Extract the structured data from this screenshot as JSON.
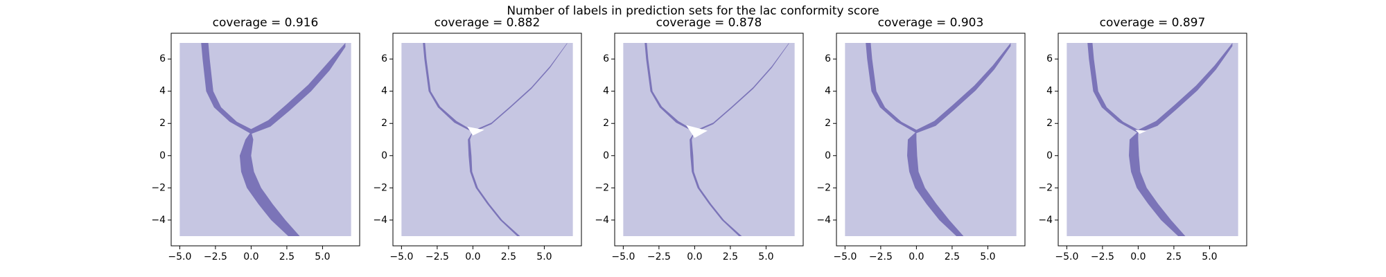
{
  "title": "Number of labels in prediction sets for the lac conformity score",
  "chart_data": [
    {
      "type": "region",
      "title": "coverage = 0.916",
      "xlim": [
        -5.6,
        7.6
      ],
      "ylim": [
        -5.6,
        7.6
      ],
      "xticks": [
        {
          "value": -5,
          "label": "−5.0"
        },
        {
          "value": -2.5,
          "label": "−2.5"
        },
        {
          "value": 0,
          "label": "0.0"
        },
        {
          "value": 2.5,
          "label": "2.5"
        },
        {
          "value": 5,
          "label": "5.0"
        }
      ],
      "yticks": [
        {
          "value": -4,
          "label": "−4"
        },
        {
          "value": -2,
          "label": "−2"
        },
        0,
        2,
        4,
        6
      ],
      "regions": [
        {
          "color": "#c6c6e2",
          "x": [
            -5,
            7,
            7,
            -5
          ],
          "y": [
            -5,
            -5,
            7,
            7
          ]
        },
        {
          "color": "#7b74b8",
          "x": [
            -3.5,
            -3.4,
            -3.15,
            -2.6,
            -1.5,
            0,
            1.35,
            2.7,
            4.2,
            5.5,
            6.6,
            6.6,
            5.3,
            4.0,
            2.5,
            1.2,
            0,
            -1.0,
            -2.1,
            -2.65,
            -2.9,
            -3.0
          ],
          "y": [
            7,
            6,
            4,
            3,
            2.1,
            1.35,
            1.8,
            2.8,
            4.0,
            5.3,
            6.75,
            7,
            5.7,
            4.4,
            3.2,
            2.2,
            1.65,
            2.1,
            3,
            4,
            6,
            7
          ]
        },
        {
          "color": "#7b74b8",
          "x": [
            0,
            -0.4,
            -0.8,
            -0.7,
            -0.3,
            0.5,
            1.4,
            2.6,
            3.4,
            2.4,
            1.5,
            0.7,
            0.2,
            0.0,
            0.15
          ],
          "y": [
            1.5,
            1,
            0,
            -1,
            -2,
            -3,
            -4,
            -5,
            -5,
            -4,
            -3,
            -2,
            -1,
            0,
            1
          ]
        }
      ]
    },
    {
      "type": "region",
      "title": "coverage = 0.882",
      "xlim": [
        -5.6,
        7.6
      ],
      "ylim": [
        -5.6,
        7.6
      ],
      "xticks": [
        {
          "value": -5,
          "label": "−5.0"
        },
        {
          "value": -2.5,
          "label": "−2.5"
        },
        {
          "value": 0,
          "label": "0.0"
        },
        {
          "value": 2.5,
          "label": "2.5"
        },
        {
          "value": 5,
          "label": "5.0"
        }
      ],
      "yticks": [
        {
          "value": -4,
          "label": "−4"
        },
        {
          "value": -2,
          "label": "−2"
        },
        0,
        2,
        4,
        6
      ],
      "regions": [
        {
          "color": "#c6c6e2",
          "x": [
            -5,
            7,
            7,
            -5
          ],
          "y": [
            -5,
            -5,
            7,
            7
          ]
        },
        {
          "color": "#7b74b8",
          "x": [
            -3.5,
            -3.4,
            -3.1,
            -2.45,
            -1.3,
            0,
            1.3,
            2.6,
            4.1,
            5.4,
            6.6,
            6.6,
            5.4,
            4.1,
            2.6,
            1.3,
            0,
            -1.15,
            -2.3,
            -2.95,
            -3.25,
            -3.35
          ],
          "y": [
            7,
            6,
            4,
            3,
            2.05,
            1.45,
            1.95,
            2.95,
            4.15,
            5.45,
            6.95,
            7,
            5.55,
            4.25,
            3.05,
            2.05,
            1.55,
            2.15,
            3.05,
            4,
            6,
            7
          ]
        },
        {
          "color": "#7b74b8",
          "x": [
            0,
            -0.35,
            -0.3,
            -0.2,
            0.2,
            1.0,
            1.9,
            3.1,
            3.3,
            2.05,
            1.15,
            0.35,
            -0.05,
            -0.1,
            -0.2
          ],
          "y": [
            1.5,
            1,
            0,
            -1,
            -2,
            -3,
            -4,
            -5,
            -5,
            -4,
            -3,
            -2,
            -1,
            0,
            1
          ]
        },
        {
          "color": "#ffffff",
          "x": [
            -0.4,
            0.8,
            0.0
          ],
          "y": [
            1.8,
            1.6,
            1.25
          ]
        }
      ]
    },
    {
      "type": "region",
      "title": "coverage = 0.878",
      "xlim": [
        -5.6,
        7.6
      ],
      "ylim": [
        -5.6,
        7.6
      ],
      "xticks": [
        {
          "value": -5,
          "label": "−5.0"
        },
        {
          "value": -2.5,
          "label": "−2.5"
        },
        {
          "value": 0,
          "label": "0.0"
        },
        {
          "value": 2.5,
          "label": "2.5"
        },
        {
          "value": 5,
          "label": "5.0"
        }
      ],
      "yticks": [
        {
          "value": -4,
          "label": "−4"
        },
        {
          "value": -2,
          "label": "−2"
        },
        0,
        2,
        4,
        6
      ],
      "regions": [
        {
          "color": "#c6c6e2",
          "x": [
            -5,
            7,
            7,
            -5
          ],
          "y": [
            -5,
            -5,
            7,
            7
          ]
        },
        {
          "color": "#7b74b8",
          "x": [
            -3.5,
            -3.4,
            -3.1,
            -2.45,
            -1.3,
            0,
            1.3,
            2.6,
            4.1,
            5.4,
            6.6,
            6.6,
            5.4,
            4.1,
            2.6,
            1.3,
            0,
            -1.15,
            -2.3,
            -2.95,
            -3.25,
            -3.35
          ],
          "y": [
            7,
            6,
            4,
            3,
            2.05,
            1.45,
            1.95,
            2.95,
            4.15,
            5.45,
            6.95,
            7,
            5.55,
            4.25,
            3.05,
            2.05,
            1.55,
            2.15,
            3.05,
            4,
            6,
            7
          ]
        },
        {
          "color": "#7b74b8",
          "x": [
            0,
            -0.35,
            -0.3,
            -0.2,
            0.2,
            1.0,
            1.9,
            3.1,
            3.3,
            2.05,
            1.15,
            0.35,
            -0.05,
            -0.1,
            -0.2
          ],
          "y": [
            1.5,
            1,
            0,
            -1,
            -2,
            -3,
            -4,
            -5,
            -5,
            -4,
            -3,
            -2,
            -1,
            0,
            1
          ]
        },
        {
          "color": "#ffffff",
          "x": [
            -0.6,
            0.9,
            0.0
          ],
          "y": [
            1.9,
            1.55,
            1.1
          ]
        }
      ]
    },
    {
      "type": "region",
      "title": "coverage = 0.903",
      "xlim": [
        -5.6,
        7.6
      ],
      "ylim": [
        -5.6,
        7.6
      ],
      "xticks": [
        {
          "value": -5,
          "label": "−5.0"
        },
        {
          "value": -2.5,
          "label": "−2.5"
        },
        {
          "value": 0,
          "label": "0.0"
        },
        {
          "value": 2.5,
          "label": "2.5"
        },
        {
          "value": 5,
          "label": "5.0"
        }
      ],
      "yticks": [
        {
          "value": -4,
          "label": "−4"
        },
        {
          "value": -2,
          "label": "−2"
        },
        0,
        2,
        4,
        6
      ],
      "regions": [
        {
          "color": "#c6c6e2",
          "x": [
            -5,
            7,
            7,
            -5
          ],
          "y": [
            -5,
            -5,
            7,
            7
          ]
        },
        {
          "color": "#7b74b8",
          "x": [
            -3.55,
            -3.45,
            -3.15,
            -2.55,
            -1.4,
            0,
            1.35,
            2.65,
            4.15,
            5.45,
            6.6,
            6.6,
            5.35,
            4.05,
            2.55,
            1.25,
            0,
            -1.05,
            -2.2,
            -2.8,
            -3.1,
            -3.2
          ],
          "y": [
            7,
            6,
            4,
            3,
            2.1,
            1.4,
            1.85,
            2.85,
            4.05,
            5.35,
            6.8,
            7,
            5.6,
            4.35,
            3.15,
            2.15,
            1.6,
            2.1,
            3,
            4,
            6,
            7
          ]
        },
        {
          "color": "#7b74b8",
          "x": [
            0,
            -0.6,
            -0.65,
            -0.5,
            -0.1,
            0.7,
            1.6,
            2.8,
            3.3,
            2.3,
            1.4,
            0.6,
            0.15,
            0.05,
            0.0
          ],
          "y": [
            1.5,
            1,
            0,
            -1,
            -2,
            -3,
            -4,
            -5,
            -5,
            -4,
            -3,
            -2,
            -1,
            0,
            1
          ]
        }
      ]
    },
    {
      "type": "region",
      "title": "coverage = 0.897",
      "xlim": [
        -5.6,
        7.6
      ],
      "ylim": [
        -5.6,
        7.6
      ],
      "xticks": [
        {
          "value": -5,
          "label": "−5.0"
        },
        {
          "value": -2.5,
          "label": "−2.5"
        },
        {
          "value": 0,
          "label": "0.0"
        },
        {
          "value": 2.5,
          "label": "2.5"
        },
        {
          "value": 5,
          "label": "5.0"
        }
      ],
      "yticks": [
        {
          "value": -4,
          "label": "−4"
        },
        {
          "value": -2,
          "label": "−2"
        },
        0,
        2,
        4,
        6
      ],
      "regions": [
        {
          "color": "#c6c6e2",
          "x": [
            -5,
            7,
            7,
            -5
          ],
          "y": [
            -5,
            -5,
            7,
            7
          ]
        },
        {
          "color": "#7b74b8",
          "x": [
            -3.55,
            -3.45,
            -3.15,
            -2.55,
            -1.4,
            0,
            1.35,
            2.65,
            4.15,
            5.45,
            6.6,
            6.6,
            5.35,
            4.05,
            2.55,
            1.25,
            0,
            -1.05,
            -2.2,
            -2.8,
            -3.1,
            -3.2
          ],
          "y": [
            7,
            6,
            4,
            3,
            2.1,
            1.4,
            1.85,
            2.85,
            4.05,
            5.35,
            6.8,
            7,
            5.6,
            4.35,
            3.15,
            2.15,
            1.6,
            2.1,
            3,
            4,
            6,
            7
          ]
        },
        {
          "color": "#7b74b8",
          "x": [
            0,
            -0.6,
            -0.65,
            -0.5,
            -0.1,
            0.7,
            1.6,
            2.8,
            3.3,
            2.3,
            1.4,
            0.6,
            0.15,
            0.05,
            0.0
          ],
          "y": [
            1.5,
            1,
            0,
            -1,
            -2,
            -3,
            -4,
            -5,
            -5,
            -4,
            -3,
            -2,
            -1,
            0,
            1
          ]
        },
        {
          "color": "#ffffff",
          "x": [
            -0.2,
            0.6,
            0.1
          ],
          "y": [
            1.6,
            1.55,
            1.35
          ]
        }
      ]
    }
  ]
}
